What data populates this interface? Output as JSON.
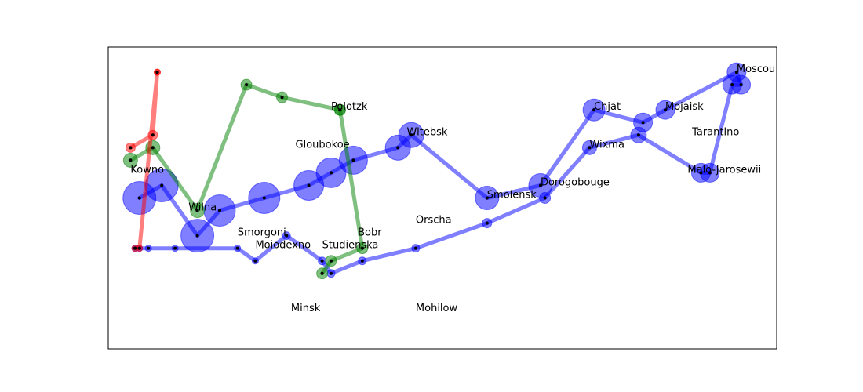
{
  "chart_data": {
    "type": "scatter",
    "xlim": [
      23.5,
      38.5
    ],
    "ylim": [
      53.6,
      56.0
    ],
    "grid": false,
    "axes_ticks": false,
    "colors": {
      "army_1": "#0000ff",
      "army_2": "#008000",
      "army_3": "#ff0000",
      "frame": "#000000",
      "point": "#000000"
    },
    "series": [
      {
        "id": "army_1",
        "color": "#0000ff",
        "points": [
          {
            "x": 24.2,
            "y": 54.8,
            "size": 42
          },
          {
            "x": 24.7,
            "y": 54.9,
            "size": 42
          },
          {
            "x": 25.5,
            "y": 54.5,
            "size": 42
          },
          {
            "x": 26.0,
            "y": 54.7,
            "size": 40
          },
          {
            "x": 27.0,
            "y": 54.8,
            "size": 40
          },
          {
            "x": 28.0,
            "y": 54.9,
            "size": 38
          },
          {
            "x": 28.5,
            "y": 55.0,
            "size": 38
          },
          {
            "x": 29.0,
            "y": 55.1,
            "size": 36
          },
          {
            "x": 30.0,
            "y": 55.2,
            "size": 32
          },
          {
            "x": 30.3,
            "y": 55.3,
            "size": 32
          },
          {
            "x": 32.0,
            "y": 54.8,
            "size": 30
          },
          {
            "x": 33.2,
            "y": 54.9,
            "size": 30
          },
          {
            "x": 34.4,
            "y": 55.5,
            "size": 28
          },
          {
            "x": 35.5,
            "y": 55.4,
            "size": 24
          },
          {
            "x": 36.0,
            "y": 55.5,
            "size": 24
          },
          {
            "x": 37.6,
            "y": 55.8,
            "size": 24
          },
          {
            "x": 37.7,
            "y": 55.7,
            "size": 24
          },
          {
            "x": 37.5,
            "y": 55.7,
            "size": 24
          },
          {
            "x": 37.0,
            "y": 55.0,
            "size": 24
          },
          {
            "x": 36.8,
            "y": 55.0,
            "size": 24
          },
          {
            "x": 35.4,
            "y": 55.3,
            "size": 20
          },
          {
            "x": 34.3,
            "y": 55.2,
            "size": 18
          },
          {
            "x": 33.3,
            "y": 54.8,
            "size": 14
          },
          {
            "x": 32.0,
            "y": 54.6,
            "size": 12
          },
          {
            "x": 30.4,
            "y": 54.4,
            "size": 10
          },
          {
            "x": 29.2,
            "y": 54.3,
            "size": 10
          },
          {
            "x": 28.5,
            "y": 54.2,
            "size": 10
          },
          {
            "x": 28.3,
            "y": 54.3,
            "size": 10
          },
          {
            "x": 27.5,
            "y": 54.5,
            "size": 10
          },
          {
            "x": 26.8,
            "y": 54.3,
            "size": 8
          },
          {
            "x": 26.4,
            "y": 54.4,
            "size": 8
          },
          {
            "x": 25.0,
            "y": 54.4,
            "size": 8
          },
          {
            "x": 24.4,
            "y": 54.4,
            "size": 8
          },
          {
            "x": 24.2,
            "y": 54.4,
            "size": 8
          },
          {
            "x": 24.1,
            "y": 54.4,
            "size": 8
          }
        ]
      },
      {
        "id": "army_2",
        "color": "#008000",
        "points": [
          {
            "x": 24.0,
            "y": 55.1,
            "size": 18
          },
          {
            "x": 24.5,
            "y": 55.2,
            "size": 18
          },
          {
            "x": 25.5,
            "y": 54.7,
            "size": 18
          },
          {
            "x": 26.6,
            "y": 55.7,
            "size": 14
          },
          {
            "x": 27.4,
            "y": 55.6,
            "size": 14
          },
          {
            "x": 28.7,
            "y": 55.5,
            "size": 14
          },
          {
            "x": 28.7,
            "y": 55.5,
            "size": 14
          },
          {
            "x": 29.2,
            "y": 54.4,
            "size": 14
          },
          {
            "x": 28.5,
            "y": 54.3,
            "size": 14
          },
          {
            "x": 28.3,
            "y": 54.2,
            "size": 14
          }
        ]
      },
      {
        "id": "army_3",
        "color": "#ff0000",
        "points": [
          {
            "x": 24.0,
            "y": 55.2,
            "size": 12
          },
          {
            "x": 24.5,
            "y": 55.3,
            "size": 12
          },
          {
            "x": 24.6,
            "y": 55.8,
            "size": 8
          },
          {
            "x": 24.6,
            "y": 55.8,
            "size": 8
          },
          {
            "x": 24.2,
            "y": 54.4,
            "size": 8
          },
          {
            "x": 24.1,
            "y": 54.4,
            "size": 8
          }
        ]
      }
    ],
    "labels": [
      {
        "text": "Kowno",
        "x": 24.0,
        "y": 55.0
      },
      {
        "text": "Wilna",
        "x": 25.3,
        "y": 54.7
      },
      {
        "text": "Smorgoni",
        "x": 26.4,
        "y": 54.5
      },
      {
        "text": "Moiodexno",
        "x": 26.8,
        "y": 54.4
      },
      {
        "text": "Gloubokoe",
        "x": 27.7,
        "y": 55.2
      },
      {
        "text": "Minsk",
        "x": 27.6,
        "y": 53.9
      },
      {
        "text": "Studienska",
        "x": 28.3,
        "y": 54.4
      },
      {
        "text": "Polotzk",
        "x": 28.5,
        "y": 55.5
      },
      {
        "text": "Bobr",
        "x": 29.1,
        "y": 54.5
      },
      {
        "text": "Witebsk",
        "x": 30.2,
        "y": 55.3
      },
      {
        "text": "Orscha",
        "x": 30.4,
        "y": 54.6
      },
      {
        "text": "Mohilow",
        "x": 30.4,
        "y": 53.9
      },
      {
        "text": "Smolensk",
        "x": 32.0,
        "y": 54.8
      },
      {
        "text": "Dorogobouge",
        "x": 33.2,
        "y": 54.9
      },
      {
        "text": "Wixma",
        "x": 34.3,
        "y": 55.2
      },
      {
        "text": "Chjat",
        "x": 34.4,
        "y": 55.5
      },
      {
        "text": "Mojaisk",
        "x": 36.0,
        "y": 55.5
      },
      {
        "text": "Tarantino",
        "x": 36.6,
        "y": 55.3
      },
      {
        "text": "Malo-Jarosewii",
        "x": 36.5,
        "y": 55.0
      },
      {
        "text": "Moscou",
        "x": 37.6,
        "y": 55.8
      }
    ]
  }
}
